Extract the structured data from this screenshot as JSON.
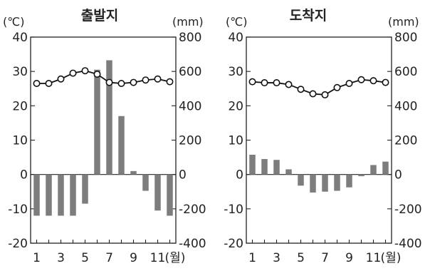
{
  "chart_data": [
    {
      "type": "bar",
      "title": "출발지",
      "left_unit": "(℃)",
      "right_unit": "(mm)",
      "x_suffix": "(월)",
      "x_tick_labels": [
        "1",
        "3",
        "5",
        "7",
        "9",
        "11"
      ],
      "months": [
        1,
        2,
        3,
        4,
        5,
        6,
        7,
        8,
        9,
        10,
        11,
        12
      ],
      "left_ticks": [
        "40",
        "30",
        "20",
        "10",
        "0",
        "-10",
        "-20"
      ],
      "right_ticks": [
        "800",
        "600",
        "400",
        "200",
        "0",
        "-200",
        "-400"
      ],
      "ylim_temperature": [
        -20,
        40
      ],
      "ylim_precipitation": [
        -400,
        800
      ],
      "temperature": [
        26.5,
        26.5,
        27.8,
        29.5,
        30.2,
        29.2,
        26.8,
        26.5,
        26.8,
        27.5,
        27.8,
        27.0
      ],
      "precipitation_bars": [
        -240,
        -240,
        -240,
        -240,
        -170,
        610,
        665,
        340,
        20,
        -95,
        -210,
        -240
      ],
      "grid": false
    },
    {
      "type": "bar",
      "title": "도착지",
      "left_unit": "(℃)",
      "right_unit": "(mm)",
      "x_suffix": "(월)",
      "x_tick_labels": [
        "1",
        "3",
        "5",
        "7",
        "9",
        "11"
      ],
      "months": [
        1,
        2,
        3,
        4,
        5,
        6,
        7,
        8,
        9,
        10,
        11,
        12
      ],
      "left_ticks": [
        "40",
        "30",
        "20",
        "10",
        "0",
        "-10",
        "-20"
      ],
      "right_ticks": [
        "800",
        "600",
        "400",
        "200",
        "0",
        "-200",
        "-400"
      ],
      "ylim_temperature": [
        -20,
        40
      ],
      "ylim_precipitation": [
        -400,
        800
      ],
      "temperature": [
        27.0,
        26.7,
        26.7,
        26.2,
        24.8,
        23.5,
        23.2,
        25.3,
        26.5,
        27.6,
        27.3,
        26.8
      ],
      "precipitation_bars": [
        115,
        90,
        85,
        30,
        -65,
        -105,
        -100,
        -95,
        -75,
        -10,
        55,
        75
      ],
      "grid": false
    }
  ]
}
